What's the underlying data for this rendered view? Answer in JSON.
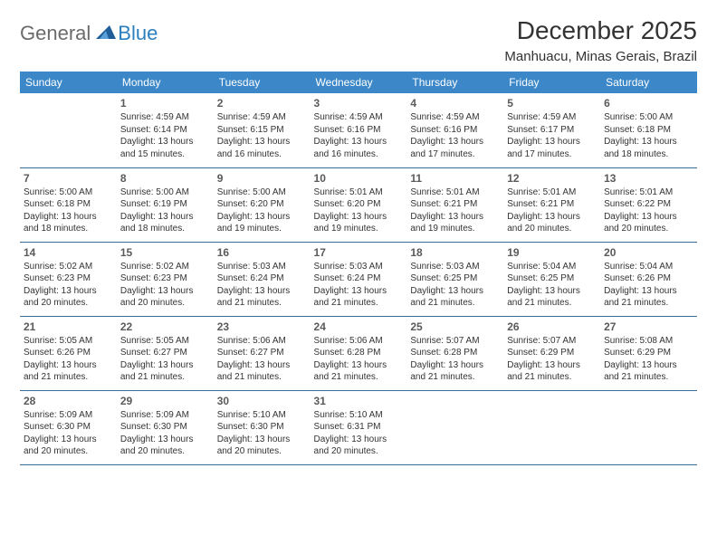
{
  "logo": {
    "part1": "General",
    "part2": "Blue"
  },
  "title": "December 2025",
  "location": "Manhuacu, Minas Gerais, Brazil",
  "colors": {
    "header_bg": "#3b87c8",
    "header_text": "#ffffff",
    "row_border": "#3b6d99",
    "logo_gray": "#6b6b6b",
    "logo_blue": "#2b7fbf",
    "text": "#333333",
    "background": "#ffffff"
  },
  "weekdays": [
    "Sunday",
    "Monday",
    "Tuesday",
    "Wednesday",
    "Thursday",
    "Friday",
    "Saturday"
  ],
  "weeks": [
    [
      null,
      {
        "n": "1",
        "sr": "Sunrise: 4:59 AM",
        "ss": "Sunset: 6:14 PM",
        "d1": "Daylight: 13 hours",
        "d2": "and 15 minutes."
      },
      {
        "n": "2",
        "sr": "Sunrise: 4:59 AM",
        "ss": "Sunset: 6:15 PM",
        "d1": "Daylight: 13 hours",
        "d2": "and 16 minutes."
      },
      {
        "n": "3",
        "sr": "Sunrise: 4:59 AM",
        "ss": "Sunset: 6:16 PM",
        "d1": "Daylight: 13 hours",
        "d2": "and 16 minutes."
      },
      {
        "n": "4",
        "sr": "Sunrise: 4:59 AM",
        "ss": "Sunset: 6:16 PM",
        "d1": "Daylight: 13 hours",
        "d2": "and 17 minutes."
      },
      {
        "n": "5",
        "sr": "Sunrise: 4:59 AM",
        "ss": "Sunset: 6:17 PM",
        "d1": "Daylight: 13 hours",
        "d2": "and 17 minutes."
      },
      {
        "n": "6",
        "sr": "Sunrise: 5:00 AM",
        "ss": "Sunset: 6:18 PM",
        "d1": "Daylight: 13 hours",
        "d2": "and 18 minutes."
      }
    ],
    [
      {
        "n": "7",
        "sr": "Sunrise: 5:00 AM",
        "ss": "Sunset: 6:18 PM",
        "d1": "Daylight: 13 hours",
        "d2": "and 18 minutes."
      },
      {
        "n": "8",
        "sr": "Sunrise: 5:00 AM",
        "ss": "Sunset: 6:19 PM",
        "d1": "Daylight: 13 hours",
        "d2": "and 18 minutes."
      },
      {
        "n": "9",
        "sr": "Sunrise: 5:00 AM",
        "ss": "Sunset: 6:20 PM",
        "d1": "Daylight: 13 hours",
        "d2": "and 19 minutes."
      },
      {
        "n": "10",
        "sr": "Sunrise: 5:01 AM",
        "ss": "Sunset: 6:20 PM",
        "d1": "Daylight: 13 hours",
        "d2": "and 19 minutes."
      },
      {
        "n": "11",
        "sr": "Sunrise: 5:01 AM",
        "ss": "Sunset: 6:21 PM",
        "d1": "Daylight: 13 hours",
        "d2": "and 19 minutes."
      },
      {
        "n": "12",
        "sr": "Sunrise: 5:01 AM",
        "ss": "Sunset: 6:21 PM",
        "d1": "Daylight: 13 hours",
        "d2": "and 20 minutes."
      },
      {
        "n": "13",
        "sr": "Sunrise: 5:01 AM",
        "ss": "Sunset: 6:22 PM",
        "d1": "Daylight: 13 hours",
        "d2": "and 20 minutes."
      }
    ],
    [
      {
        "n": "14",
        "sr": "Sunrise: 5:02 AM",
        "ss": "Sunset: 6:23 PM",
        "d1": "Daylight: 13 hours",
        "d2": "and 20 minutes."
      },
      {
        "n": "15",
        "sr": "Sunrise: 5:02 AM",
        "ss": "Sunset: 6:23 PM",
        "d1": "Daylight: 13 hours",
        "d2": "and 20 minutes."
      },
      {
        "n": "16",
        "sr": "Sunrise: 5:03 AM",
        "ss": "Sunset: 6:24 PM",
        "d1": "Daylight: 13 hours",
        "d2": "and 21 minutes."
      },
      {
        "n": "17",
        "sr": "Sunrise: 5:03 AM",
        "ss": "Sunset: 6:24 PM",
        "d1": "Daylight: 13 hours",
        "d2": "and 21 minutes."
      },
      {
        "n": "18",
        "sr": "Sunrise: 5:03 AM",
        "ss": "Sunset: 6:25 PM",
        "d1": "Daylight: 13 hours",
        "d2": "and 21 minutes."
      },
      {
        "n": "19",
        "sr": "Sunrise: 5:04 AM",
        "ss": "Sunset: 6:25 PM",
        "d1": "Daylight: 13 hours",
        "d2": "and 21 minutes."
      },
      {
        "n": "20",
        "sr": "Sunrise: 5:04 AM",
        "ss": "Sunset: 6:26 PM",
        "d1": "Daylight: 13 hours",
        "d2": "and 21 minutes."
      }
    ],
    [
      {
        "n": "21",
        "sr": "Sunrise: 5:05 AM",
        "ss": "Sunset: 6:26 PM",
        "d1": "Daylight: 13 hours",
        "d2": "and 21 minutes."
      },
      {
        "n": "22",
        "sr": "Sunrise: 5:05 AM",
        "ss": "Sunset: 6:27 PM",
        "d1": "Daylight: 13 hours",
        "d2": "and 21 minutes."
      },
      {
        "n": "23",
        "sr": "Sunrise: 5:06 AM",
        "ss": "Sunset: 6:27 PM",
        "d1": "Daylight: 13 hours",
        "d2": "and 21 minutes."
      },
      {
        "n": "24",
        "sr": "Sunrise: 5:06 AM",
        "ss": "Sunset: 6:28 PM",
        "d1": "Daylight: 13 hours",
        "d2": "and 21 minutes."
      },
      {
        "n": "25",
        "sr": "Sunrise: 5:07 AM",
        "ss": "Sunset: 6:28 PM",
        "d1": "Daylight: 13 hours",
        "d2": "and 21 minutes."
      },
      {
        "n": "26",
        "sr": "Sunrise: 5:07 AM",
        "ss": "Sunset: 6:29 PM",
        "d1": "Daylight: 13 hours",
        "d2": "and 21 minutes."
      },
      {
        "n": "27",
        "sr": "Sunrise: 5:08 AM",
        "ss": "Sunset: 6:29 PM",
        "d1": "Daylight: 13 hours",
        "d2": "and 21 minutes."
      }
    ],
    [
      {
        "n": "28",
        "sr": "Sunrise: 5:09 AM",
        "ss": "Sunset: 6:30 PM",
        "d1": "Daylight: 13 hours",
        "d2": "and 20 minutes."
      },
      {
        "n": "29",
        "sr": "Sunrise: 5:09 AM",
        "ss": "Sunset: 6:30 PM",
        "d1": "Daylight: 13 hours",
        "d2": "and 20 minutes."
      },
      {
        "n": "30",
        "sr": "Sunrise: 5:10 AM",
        "ss": "Sunset: 6:30 PM",
        "d1": "Daylight: 13 hours",
        "d2": "and 20 minutes."
      },
      {
        "n": "31",
        "sr": "Sunrise: 5:10 AM",
        "ss": "Sunset: 6:31 PM",
        "d1": "Daylight: 13 hours",
        "d2": "and 20 minutes."
      },
      null,
      null,
      null
    ]
  ]
}
